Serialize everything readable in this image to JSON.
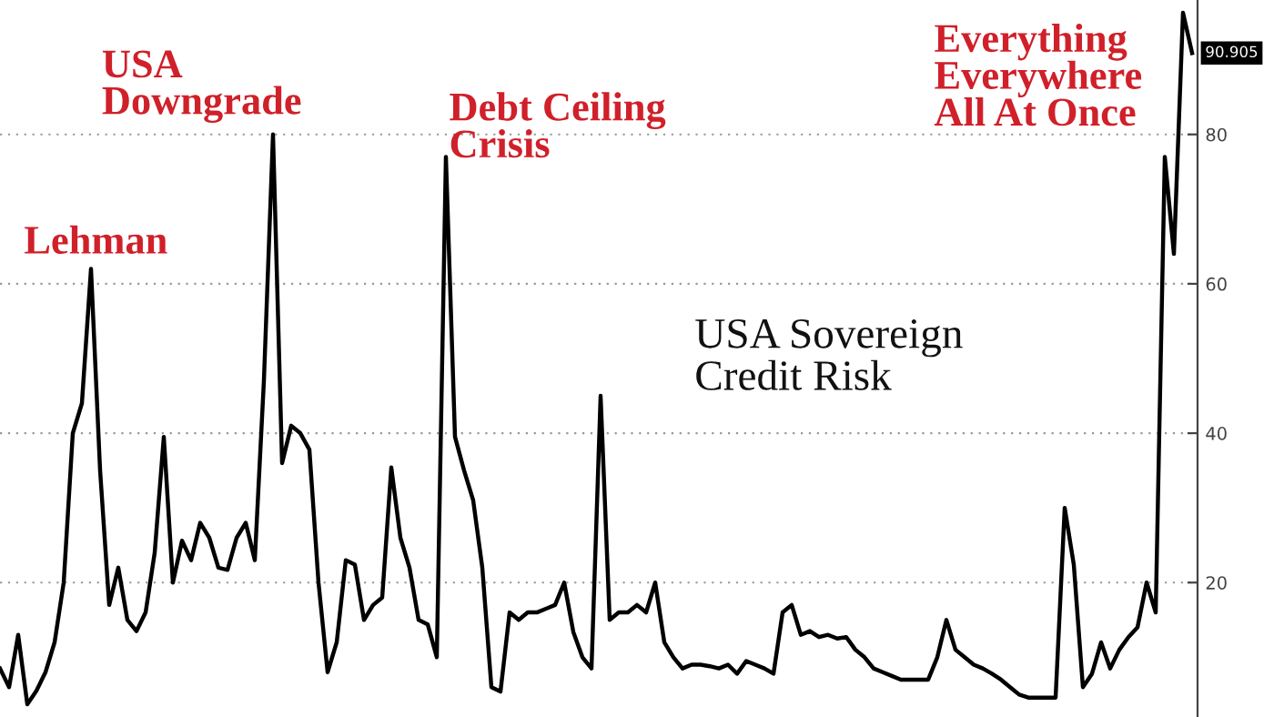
{
  "chart_data": {
    "type": "line",
    "title": "USA Sovereign\nCredit Risk",
    "categories": [
      null,
      null,
      null,
      null,
      null,
      null,
      null,
      null,
      null,
      null,
      null,
      null,
      null,
      null,
      null,
      null,
      null,
      null,
      null,
      null,
      null,
      null,
      null,
      null,
      null,
      null,
      null,
      null,
      null,
      null,
      null,
      null,
      null,
      null,
      null,
      null,
      null,
      null,
      null,
      null,
      null,
      null,
      null,
      null,
      null,
      null,
      null,
      null,
      null,
      null,
      null,
      null,
      null,
      null,
      null,
      null,
      null,
      null,
      null,
      null,
      null,
      null,
      null,
      null,
      null,
      null,
      null,
      null,
      null,
      null,
      null,
      null,
      null,
      null,
      null,
      null,
      null,
      null,
      null,
      null,
      null,
      null,
      null,
      null,
      null,
      null,
      null,
      null,
      null,
      null,
      null,
      null,
      null,
      null,
      null,
      null,
      null,
      null,
      null,
      null,
      null,
      null,
      null,
      null,
      null,
      null,
      null,
      null,
      null,
      null,
      null,
      null,
      null,
      null,
      null,
      null,
      null,
      null,
      null,
      null,
      null,
      null,
      null,
      null,
      null,
      null,
      null,
      null,
      null,
      null,
      null,
      null
    ],
    "series": [
      {
        "color": "#000000",
        "values": [
          8.5,
          6,
          13,
          3.7,
          5.5,
          8,
          12,
          20,
          40,
          44,
          62,
          35,
          17,
          22,
          15,
          13.5,
          16,
          24,
          39.5,
          20,
          25.6,
          23,
          28,
          26,
          22,
          21.7,
          26,
          28,
          23,
          47,
          80,
          36,
          41,
          40,
          37.8,
          20,
          8,
          12,
          23,
          22.4,
          15,
          17,
          18,
          35.4,
          26,
          22,
          15,
          14.4,
          10,
          77,
          39.5,
          35,
          31,
          22,
          6,
          5.4,
          16,
          15,
          16,
          16,
          16.5,
          17,
          20,
          13.4,
          10,
          8.5,
          45,
          15,
          16,
          16,
          17,
          16,
          20,
          12,
          10,
          8.5,
          9,
          9,
          8.8,
          8.5,
          9,
          7.8,
          9.5,
          9,
          8.5,
          7.8,
          16,
          17,
          13,
          13.5,
          12.7,
          13,
          12.5,
          12.7,
          11,
          10,
          8.5,
          8,
          7.5,
          7,
          7,
          7,
          7,
          10,
          15,
          11,
          10,
          9,
          8.5,
          7.8,
          7,
          6,
          5,
          4.6,
          4.6,
          4.6,
          4.6,
          30,
          22.4,
          6,
          7.8,
          12,
          8.5,
          11,
          12.7,
          14,
          20,
          16,
          77,
          64,
          96.3,
          90.905
        ]
      }
    ],
    "ylim": [
      2,
      98
    ],
    "yticks": [
      20,
      40,
      60,
      80
    ],
    "tick_labels": "y",
    "grid": "y",
    "annotations": [
      "Lehman",
      "USA\nDowngrade",
      "Debt Ceiling\nCrisis",
      "Everything\nEverywhere\nAll At Once",
      {
        "text": "90.905",
        "y": 90.905
      }
    ]
  }
}
